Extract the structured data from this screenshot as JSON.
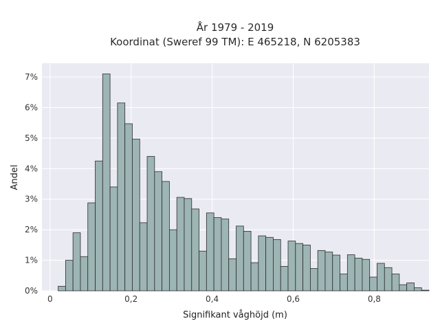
{
  "chart_data": {
    "type": "bar",
    "title": [
      "År 1979 - 2019",
      "Koordinat (Sweref 99 TM): E 465218, N 6205383"
    ],
    "xlabel": "Signifikant våghöjd (m)",
    "ylabel": "Andel",
    "xlim": [
      -0.02,
      0.935
    ],
    "ylim": [
      0,
      7.45
    ],
    "x_ticks": [
      0,
      0.2,
      0.4,
      0.6,
      0.8
    ],
    "x_tick_labels": [
      "0",
      "0,2",
      "0,4",
      "0,6",
      "0,8"
    ],
    "y_ticks": [
      0,
      1,
      2,
      3,
      4,
      5,
      6,
      7
    ],
    "y_tick_labels": [
      "0%",
      "1%",
      "2%",
      "3%",
      "4%",
      "5%",
      "6%",
      "7%"
    ],
    "grid": true,
    "bin_start": 0.02,
    "bin_width": 0.0183,
    "values": [
      0.15,
      1.0,
      1.9,
      1.12,
      2.88,
      4.25,
      7.1,
      3.4,
      6.15,
      5.47,
      4.97,
      2.23,
      4.4,
      3.9,
      3.58,
      2.0,
      3.06,
      3.02,
      2.68,
      1.3,
      2.55,
      2.4,
      2.35,
      1.05,
      2.12,
      1.95,
      0.92,
      1.8,
      1.75,
      1.68,
      0.8,
      1.63,
      1.55,
      1.5,
      0.73,
      1.32,
      1.27,
      1.17,
      0.55,
      1.18,
      1.07,
      1.03,
      0.45,
      0.9,
      0.76,
      0.55,
      0.2,
      0.26,
      0.1,
      0.02
    ],
    "colors": {
      "bar_fill": "#9db5b4",
      "bar_edge": "#2b2b2b",
      "plot_bg": "#eaeaf2",
      "grid": "#ffffff"
    }
  }
}
